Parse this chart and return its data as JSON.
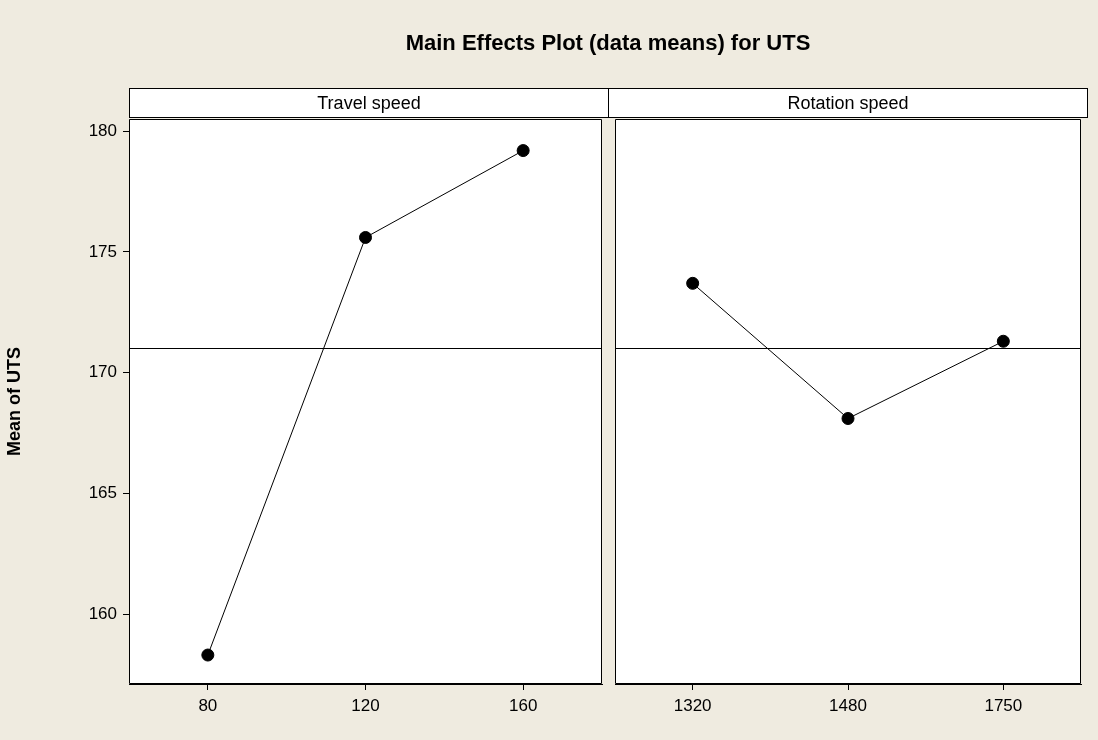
{
  "chart_data": [
    {
      "type": "line",
      "title": "Main Effects Plot (data means) for UTS",
      "subtitle": "Travel speed",
      "ylabel": "Mean of UTS",
      "categories": [
        "80",
        "120",
        "160"
      ],
      "values": [
        158.3,
        175.6,
        179.2
      ],
      "color": "#000000",
      "marker": "circle",
      "ylim": [
        157.1,
        180.5
      ],
      "yticks": [
        160,
        165,
        170,
        175,
        180
      ],
      "ref_lines": [
        {
          "axis": "y",
          "value": 171.0
        }
      ]
    },
    {
      "type": "line",
      "subtitle": "Rotation speed",
      "categories": [
        "1320",
        "1480",
        "1750"
      ],
      "values": [
        173.7,
        168.1,
        171.3
      ],
      "color": "#000000",
      "marker": "circle",
      "ylim": [
        157.1,
        180.5
      ],
      "yticks": [
        160,
        165,
        170,
        175,
        180
      ],
      "ref_lines": [
        {
          "axis": "y",
          "value": 171.0
        }
      ],
      "tick_labels": "x"
    }
  ]
}
